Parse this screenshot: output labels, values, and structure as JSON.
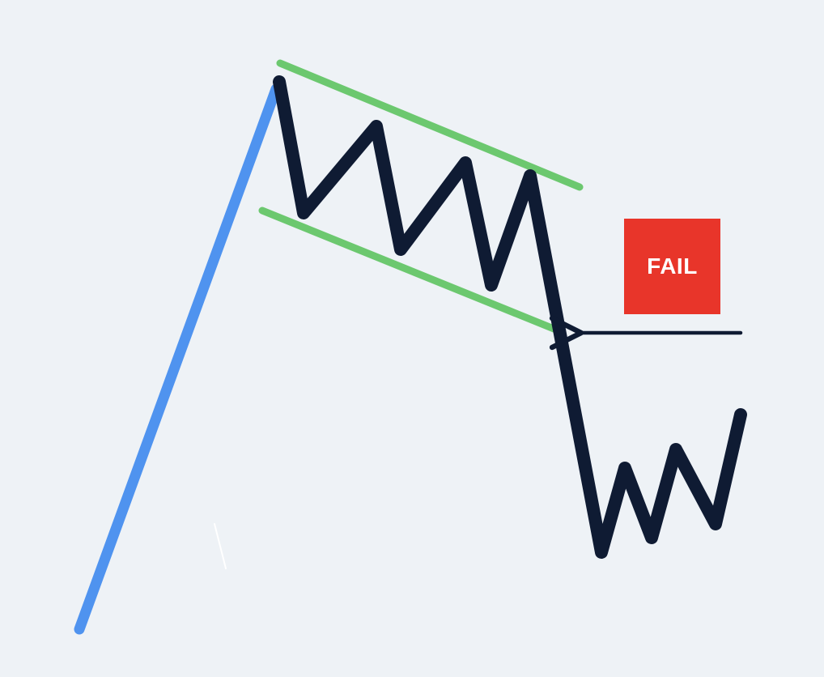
{
  "colors": {
    "background": "#eef2f6",
    "pole": "#4f93ef",
    "channel": "#6cc86f",
    "price": "#0f1b33",
    "arrow": "#0f1b33",
    "badge": "#e8352a",
    "badge_text": "#ffffff"
  },
  "badge": {
    "label": "FAIL"
  },
  "icons": {
    "pointer": "arrow-left-icon"
  }
}
